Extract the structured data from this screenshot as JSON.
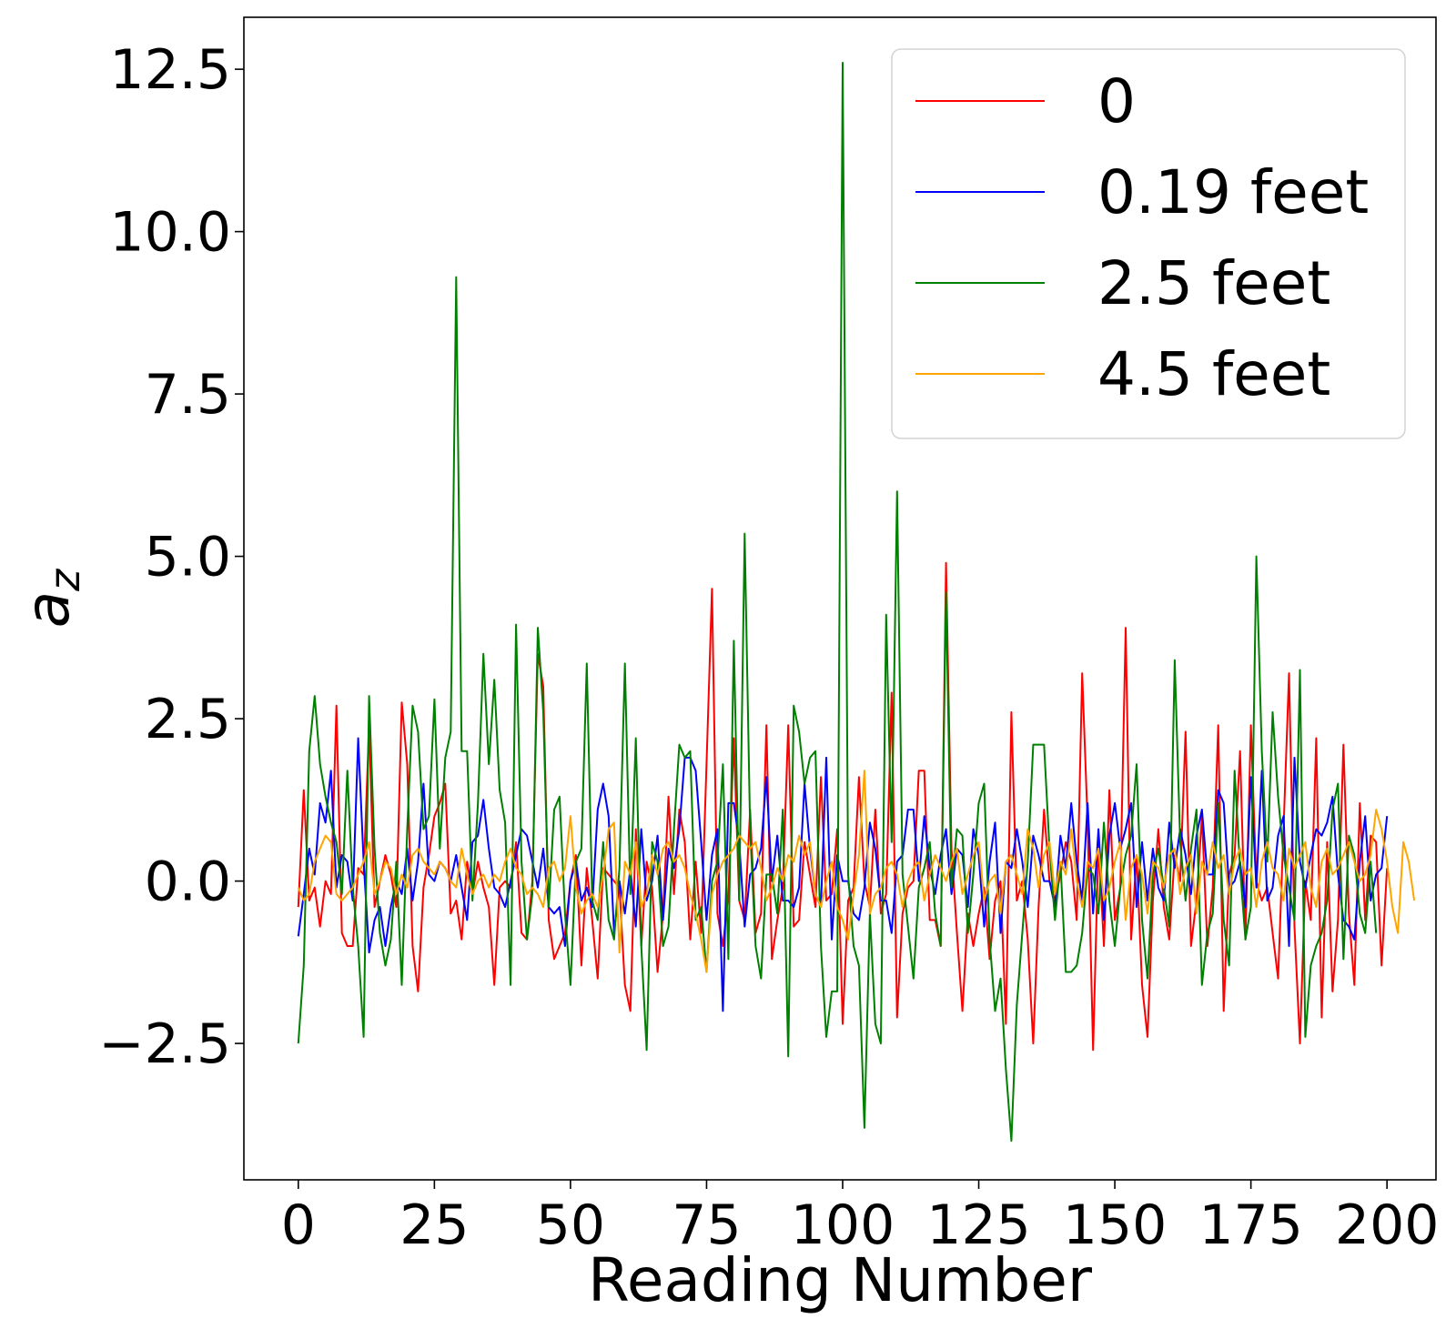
{
  "chart_data": {
    "type": "line",
    "title": "",
    "xlabel": "Reading Number",
    "ylabel": "a",
    "ylabel_subscript": "z",
    "xlim": [
      -10,
      209
    ],
    "ylim": [
      -4.6,
      13.3
    ],
    "xticks": [
      0,
      25,
      50,
      75,
      100,
      125,
      150,
      175,
      200
    ],
    "yticks": [
      -2.5,
      0.0,
      2.5,
      5.0,
      7.5,
      10.0,
      12.5
    ],
    "ytick_labels": [
      "−2.5",
      "0.0",
      "2.5",
      "5.0",
      "7.5",
      "10.0",
      "12.5"
    ],
    "legend_position": "top-right",
    "grid": false,
    "series": [
      {
        "name": "0",
        "color": "#ff0000",
        "x_start": 0,
        "values": [
          -0.4,
          1.4,
          -0.3,
          -0.1,
          -0.7,
          0.0,
          -0.2,
          2.7,
          -0.8,
          -1.0,
          -1.0,
          0.2,
          0.1,
          2.4,
          -0.4,
          0.0,
          0.4,
          0.1,
          -0.4,
          2.75,
          1.8,
          -1.0,
          -1.7,
          -0.1,
          0.4,
          1.0,
          1.2,
          1.5,
          -0.5,
          -0.3,
          -0.9,
          0.3,
          -0.2,
          0.3,
          -0.1,
          -0.4,
          -1.6,
          -0.1,
          0.0,
          -0.1,
          0.6,
          -0.8,
          -0.9,
          0.0,
          3.5,
          3.0,
          -0.6,
          -1.2,
          -1.0,
          -0.8,
          0.0,
          0.4,
          -1.3,
          0.2,
          -0.6,
          -1.5,
          0.2,
          0.1,
          0.0,
          -0.1,
          -1.6,
          -2.0,
          0.8,
          -1.0,
          0.3,
          -0.1,
          -1.4,
          -0.5,
          1.3,
          -0.2,
          1.1,
          0.6,
          -0.9,
          0.3,
          -0.8,
          1.8,
          4.5,
          -0.5,
          -1.0,
          -0.2,
          2.2,
          -0.3,
          -0.6,
          1.1,
          -0.8,
          -0.5,
          2.4,
          -1.2,
          -0.6,
          -0.1,
          2.4,
          -0.7,
          -0.6,
          0.6,
          0.1,
          -0.4,
          1.6,
          -0.3,
          -0.2,
          0.8,
          -2.2,
          -0.3,
          -0.1,
          1.6,
          0.0,
          -0.4,
          1.1,
          -0.5,
          -0.2,
          2.9,
          -2.1,
          -0.5,
          -0.1,
          0.0,
          1.7,
          1.7,
          -0.6,
          -0.6,
          -1.0,
          4.9,
          0.5,
          -0.8,
          -2.0,
          -0.5,
          -1.0,
          -0.5,
          -0.1,
          -1.2,
          -0.3,
          0.0,
          -2.2,
          2.6,
          -0.3,
          0.0,
          -0.9,
          -2.5,
          -0.4,
          1.1,
          0.0,
          -0.3,
          0.1,
          0.6,
          0.3,
          -0.6,
          3.2,
          0.9,
          -2.6,
          0.6,
          -1.0,
          1.4,
          -0.6,
          -0.1,
          3.9,
          -0.9,
          0.4,
          -1.6,
          -2.4,
          -0.3,
          0.8,
          -0.4,
          -0.9,
          0.4,
          0.0,
          2.3,
          -1.0,
          -0.3,
          1.0,
          -1.0,
          -0.1,
          2.4,
          -2.0,
          0.1,
          0.4,
          2.0,
          -0.9,
          2.4,
          0.0,
          -0.3,
          -0.1,
          -0.8,
          -1.5,
          0.8,
          3.2,
          -0.7,
          -2.5,
          0.0,
          -0.6,
          2.2,
          -2.1,
          0.6,
          -1.7,
          -0.6,
          2.1,
          -0.5,
          -1.6,
          1.2,
          -0.6,
          0.7,
          0.6,
          -1.3,
          0.2
        ]
      },
      {
        "name": "0.19 feet",
        "color": "#0000ff",
        "x_start": 0,
        "values": [
          -0.85,
          -0.2,
          0.5,
          0.1,
          1.2,
          0.9,
          1.7,
          -0.1,
          0.4,
          0.3,
          -0.3,
          2.2,
          0.3,
          -1.1,
          -0.6,
          -0.4,
          -1.0,
          -0.4,
          0.0,
          -0.2,
          0.5,
          -0.3,
          0.3,
          1.5,
          0.1,
          0.0,
          0.3,
          0.2,
          0.0,
          0.4,
          -0.1,
          -0.6,
          0.6,
          0.7,
          1.25,
          0.5,
          -0.1,
          -0.2,
          -0.4,
          0.0,
          0.4,
          0.8,
          0.7,
          0.3,
          -0.1,
          0.5,
          -0.4,
          -0.5,
          -0.4,
          -1.0,
          0.0,
          0.3,
          -0.3,
          -0.1,
          -0.4,
          1.1,
          1.5,
          1.0,
          -0.8,
          0.0,
          -0.5,
          0.2,
          -0.7,
          0.8,
          -0.3,
          0.0,
          0.7,
          -0.6,
          0.5,
          0.2,
          0.8,
          1.9,
          1.9,
          1.7,
          0.6,
          -0.6,
          0.4,
          0.8,
          -2.0,
          1.2,
          1.2,
          0.6,
          -0.7,
          0.1,
          0.2,
          0.5,
          1.6,
          0.0,
          0.7,
          -0.3,
          -0.3,
          -0.4,
          -0.1,
          1.5,
          0.5,
          -0.2,
          -0.4,
          1.9,
          -0.9,
          0.4,
          0.0,
          0.0,
          -0.5,
          -0.6,
          -0.1,
          0.9,
          0.5,
          -0.3,
          -0.3,
          -0.8,
          0.3,
          0.4,
          1.1,
          1.1,
          0.0,
          1.0,
          0.2,
          -0.2,
          0.4,
          0.8,
          -0.2,
          0.5,
          0.4,
          -0.4,
          0.8,
          0.4,
          -0.7,
          0.3,
          0.9,
          -0.8,
          0.3,
          0.2,
          0.8,
          0.3,
          -0.4,
          0.7,
          0.4,
          0.0,
          0.0,
          -0.4,
          0.7,
          0.2,
          1.2,
          0.3,
          -0.3,
          1.2,
          -0.5,
          0.8,
          -0.6,
          0.7,
          1.2,
          0.5,
          0.8,
          1.2,
          -0.4,
          0.6,
          -0.3,
          0.5,
          -0.1,
          -0.3,
          0.9,
          0.2,
          0.8,
          0.4,
          -0.2,
          0.7,
          1.1,
          0.1,
          0.1,
          1.4,
          1.2,
          -0.1,
          0.0,
          0.3,
          -0.4,
          1.6,
          -0.1,
          1.7,
          -0.3,
          -0.1,
          0.7,
          1.0,
          -1.0,
          1.9,
          0.3,
          -0.1,
          0.4,
          0.8,
          0.7,
          0.9,
          1.3,
          0.1,
          -0.6,
          -0.7,
          -0.9,
          0.3,
          1.0,
          -0.3,
          0.1,
          0.2,
          1.0
        ]
      },
      {
        "name": "2.5 feet",
        "color": "#008000",
        "x_start": 0,
        "values": [
          -2.5,
          -1.3,
          2.0,
          2.85,
          1.8,
          1.3,
          0.9,
          0.6,
          -0.2,
          1.7,
          -0.1,
          -1.0,
          -2.4,
          2.85,
          0.5,
          -0.8,
          -1.3,
          -0.9,
          0.3,
          -1.6,
          0.8,
          2.7,
          2.3,
          0.8,
          1.0,
          2.8,
          0.5,
          1.9,
          2.3,
          9.3,
          2.0,
          2.0,
          -0.3,
          1.2,
          3.5,
          1.8,
          3.1,
          1.4,
          0.9,
          -1.6,
          3.95,
          0.3,
          -0.9,
          -0.2,
          3.9,
          2.6,
          -0.4,
          1.1,
          1.3,
          -0.5,
          -1.6,
          0.3,
          0.5,
          3.35,
          -0.3,
          -0.6,
          0.6,
          -0.6,
          -0.9,
          0.2,
          3.35,
          -0.2,
          2.2,
          -1.0,
          -2.6,
          0.6,
          0.3,
          -1.0,
          -0.7,
          0.8,
          2.1,
          1.9,
          2.0,
          -0.6,
          -0.4,
          -1.4,
          0.0,
          0.3,
          1.8,
          -1.2,
          3.7,
          -0.3,
          5.35,
          0.8,
          -1.0,
          -1.5,
          0.1,
          0.1,
          -0.5,
          1.1,
          -2.7,
          2.7,
          2.3,
          1.5,
          1.9,
          2.0,
          -1.0,
          -2.4,
          -1.7,
          -1.7,
          12.6,
          0.1,
          -1.0,
          -1.3,
          -3.8,
          -0.5,
          -2.2,
          -2.5,
          4.1,
          0.6,
          6.0,
          0.1,
          -0.7,
          -1.5,
          -0.1,
          0.2,
          0.6,
          -0.5,
          -1.0,
          4.45,
          -0.1,
          0.8,
          0.7,
          -0.8,
          0.1,
          1.2,
          1.5,
          -0.9,
          -2.0,
          -1.5,
          -2.9,
          -4.0,
          -1.9,
          -0.8,
          0.3,
          2.1,
          2.1,
          2.1,
          0.5,
          -0.6,
          0.3,
          -1.4,
          -1.4,
          -1.3,
          -0.8,
          0.2,
          0.1,
          -0.5,
          0.9,
          -0.3,
          -1.0,
          -0.1,
          0.4,
          0.7,
          1.8,
          -0.6,
          -1.5,
          0.1,
          0.5,
          -0.1,
          -0.7,
          3.4,
          0.6,
          -0.3,
          0.5,
          1.1,
          -1.6,
          -0.8,
          -0.5,
          1.2,
          -0.6,
          -1.3,
          1.7,
          0.2,
          -0.9,
          -0.4,
          5.0,
          2.0,
          0.3,
          2.6,
          1.3,
          0.4,
          -0.1,
          -0.6,
          3.25,
          -2.4,
          -1.3,
          -1.0,
          -0.8,
          -0.3,
          1.1,
          1.5,
          -1.2,
          0.7,
          0.4,
          -0.5,
          -0.8,
          0.3,
          -0.8
        ]
      },
      {
        "name": "4.5 feet",
        "color": "#ffa500",
        "x_start": 0,
        "values": [
          -0.1,
          -0.3,
          -0.2,
          0.3,
          0.5,
          0.7,
          0.6,
          -0.2,
          -0.3,
          -0.2,
          -0.1,
          0.1,
          0.3,
          0.6,
          -0.2,
          0.0,
          0.3,
          0.2,
          -0.2,
          0.1,
          -0.1,
          0.4,
          0.5,
          0.3,
          0.2,
          0.1,
          0.3,
          0.2,
          0.0,
          -0.1,
          0.5,
          0.1,
          -0.2,
          0.0,
          0.1,
          -0.1,
          0.1,
          0.0,
          0.3,
          0.5,
          0.2,
          0.1,
          -0.2,
          -0.1,
          -0.2,
          -0.4,
          0.2,
          0.3,
          0.0,
          0.2,
          1.0,
          -0.1,
          -0.5,
          -0.3,
          -0.2,
          -0.4,
          0.1,
          0.8,
          0.9,
          -1.1,
          0.3,
          0.1,
          0.6,
          -0.4,
          -0.2,
          0.4,
          0.1,
          0.5,
          0.6,
          0.3,
          0.4,
          0.2,
          -0.2,
          -0.5,
          -0.9,
          -1.4,
          -0.2,
          0.1,
          0.3,
          0.4,
          0.5,
          0.7,
          0.6,
          0.5,
          0.6,
          0.2,
          -0.3,
          -0.1,
          0.2,
          0.0,
          0.4,
          0.3,
          0.7,
          0.4,
          0.6,
          -0.2,
          -0.4,
          0.0,
          0.3,
          -0.4,
          -0.6,
          -0.9,
          -0.2,
          0.4,
          1.7,
          -0.5,
          -0.2,
          -0.1,
          0.2,
          0.3,
          0.1,
          -0.4,
          0.0,
          0.2,
          0.3,
          -0.3,
          0.1,
          0.4,
          0.2,
          0.0,
          0.3,
          0.5,
          -0.2,
          0.1,
          0.4,
          0.6,
          -0.3,
          0.0,
          0.1,
          -0.5,
          0.3,
          0.4,
          0.1,
          -0.2,
          0.8,
          0.5,
          -0.1,
          0.4,
          0.6,
          -0.2,
          0.3,
          0.1,
          0.8,
          0.0,
          -0.4,
          0.3,
          0.2,
          0.5,
          -0.3,
          -0.1,
          0.3,
          0.6,
          -0.6,
          0.2,
          0.4,
          0.1,
          -0.5,
          0.3,
          0.2,
          -0.1,
          0.4,
          0.5,
          -0.2,
          0.2,
          0.4,
          -0.5,
          0.3,
          0.1,
          0.6,
          0.2,
          0.4,
          -0.2,
          0.3,
          0.5,
          0.1,
          0.2,
          -0.4,
          0.3,
          0.6,
          0.2,
          0.1,
          -0.3,
          0.5,
          0.2,
          0.4,
          0.6,
          -0.1,
          -0.4,
          0.3,
          0.5,
          0.1,
          0.2,
          0.4,
          0.6,
          0.3,
          0.0,
          0.1,
          0.4,
          1.1,
          0.8,
          0.3,
          -0.4,
          -0.8,
          0.6,
          0.3,
          -0.3
        ]
      }
    ]
  }
}
